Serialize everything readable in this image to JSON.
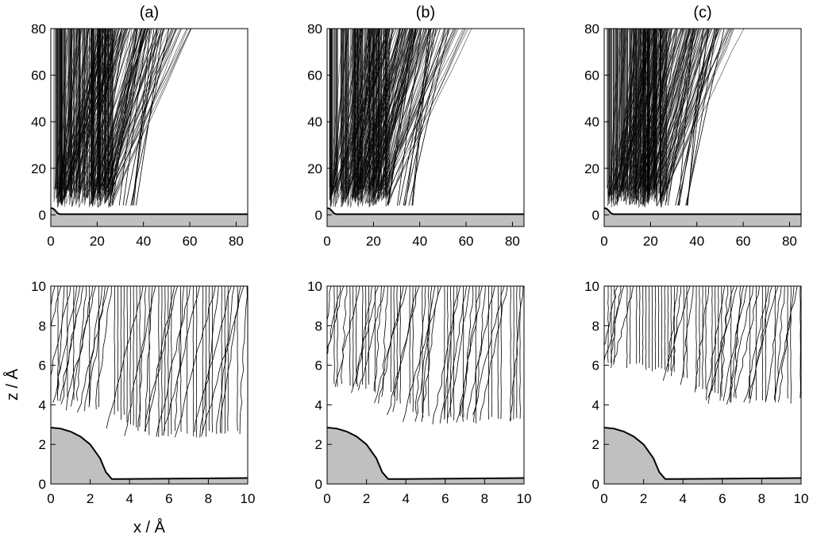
{
  "figure": {
    "xlabel": "x / Å",
    "ylabel": "z / Å",
    "colors": {
      "surface_fill": "#c0c0c0",
      "line": "#000000",
      "frame": "#000000",
      "background": "#ffffff"
    }
  },
  "chart_data": [
    {
      "panel": "(a)",
      "row": "top",
      "type": "line",
      "title": "(a)",
      "xlabel": "",
      "ylabel": "",
      "xlim": [
        0,
        85
      ],
      "ylim": [
        -5,
        80
      ],
      "xticks": [
        "0",
        "20",
        "40",
        "60",
        "80"
      ],
      "yticks": [
        "0",
        "20",
        "40",
        "60",
        "80"
      ],
      "surface": {
        "x": [
          0,
          1,
          2,
          3,
          4,
          85
        ],
        "y": [
          2.9,
          2.7,
          1.8,
          0.6,
          0.3,
          0.3
        ]
      },
      "trajectory_count_note": "",
      "grid": false
    },
    {
      "panel": "(b)",
      "row": "top",
      "type": "line",
      "title": "(b)",
      "xlabel": "",
      "ylabel": "",
      "xlim": [
        0,
        85
      ],
      "ylim": [
        -5,
        80
      ],
      "xticks": [
        "0",
        "20",
        "40",
        "60",
        "80"
      ],
      "yticks": [
        "0",
        "20",
        "40",
        "60",
        "80"
      ],
      "surface": {
        "x": [
          0,
          1,
          2,
          3,
          4,
          85
        ],
        "y": [
          2.9,
          2.7,
          1.8,
          0.6,
          0.3,
          0.3
        ]
      },
      "grid": false
    },
    {
      "panel": "(c)",
      "row": "top",
      "type": "line",
      "title": "(c)",
      "xlabel": "",
      "ylabel": "",
      "xlim": [
        0,
        85
      ],
      "ylim": [
        -5,
        80
      ],
      "xticks": [
        "0",
        "20",
        "40",
        "60",
        "80"
      ],
      "yticks": [
        "0",
        "20",
        "40",
        "60",
        "80"
      ],
      "surface": {
        "x": [
          0,
          1,
          2,
          3,
          4,
          85
        ],
        "y": [
          2.9,
          2.7,
          1.8,
          0.6,
          0.3,
          0.3
        ]
      },
      "grid": false
    },
    {
      "panel": "(a)",
      "row": "bottom",
      "type": "line",
      "title": "",
      "xlabel": "x / Å",
      "ylabel": "z / Å",
      "xlim": [
        0,
        10
      ],
      "ylim": [
        0,
        10
      ],
      "xticks": [
        "0",
        "2",
        "4",
        "6",
        "8",
        "10"
      ],
      "yticks": [
        "0",
        "2",
        "4",
        "6",
        "8",
        "10"
      ],
      "surface": {
        "x": [
          0,
          0.5,
          1,
          1.5,
          2,
          2.5,
          2.8,
          3.1,
          3.5,
          10
        ],
        "y": [
          2.85,
          2.8,
          2.65,
          2.4,
          2.0,
          1.3,
          0.6,
          0.25,
          0.25,
          0.3
        ]
      },
      "turning_depth": {
        "x": [
          0,
          1,
          2,
          3,
          4,
          5,
          6,
          7,
          8,
          9,
          10
        ],
        "z": [
          4.3,
          4.2,
          4.0,
          3.7,
          3.2,
          2.5,
          2.5,
          2.5,
          2.5,
          2.5,
          2.5
        ]
      },
      "grid": false
    },
    {
      "panel": "(b)",
      "row": "bottom",
      "type": "line",
      "title": "",
      "xlabel": "",
      "ylabel": "",
      "xlim": [
        0,
        10
      ],
      "ylim": [
        0,
        10
      ],
      "xticks": [
        "0",
        "2",
        "4",
        "6",
        "8",
        "10"
      ],
      "yticks": [
        "0",
        "2",
        "4",
        "6",
        "8",
        "10"
      ],
      "surface": {
        "x": [
          0,
          0.5,
          1,
          1.5,
          2,
          2.5,
          2.8,
          3.1,
          3.5,
          10
        ],
        "y": [
          2.85,
          2.8,
          2.65,
          2.4,
          2.0,
          1.3,
          0.6,
          0.25,
          0.25,
          0.3
        ]
      },
      "turning_depth": {
        "x": [
          0,
          1,
          2,
          3,
          4,
          5,
          6,
          7,
          8,
          9,
          10
        ],
        "z": [
          5.1,
          5.1,
          4.9,
          4.6,
          4.0,
          3.4,
          3.2,
          3.2,
          3.3,
          3.3,
          3.3
        ]
      },
      "grid": false
    },
    {
      "panel": "(c)",
      "row": "bottom",
      "type": "line",
      "title": "",
      "xlabel": "",
      "ylabel": "",
      "xlim": [
        0,
        10
      ],
      "ylim": [
        0,
        10
      ],
      "xticks": [
        "0",
        "2",
        "4",
        "6",
        "8",
        "10"
      ],
      "yticks": [
        "0",
        "2",
        "4",
        "6",
        "8",
        "10"
      ],
      "surface": {
        "x": [
          0,
          0.5,
          1,
          1.5,
          2,
          2.5,
          2.8,
          3.1,
          3.5,
          10
        ],
        "y": [
          2.85,
          2.8,
          2.65,
          2.4,
          2.0,
          1.3,
          0.6,
          0.25,
          0.25,
          0.3
        ]
      },
      "turning_depth": {
        "x": [
          0,
          1,
          2,
          3,
          4,
          5,
          6,
          7,
          8,
          9,
          10
        ],
        "z": [
          6.0,
          6.0,
          5.9,
          5.7,
          5.4,
          4.8,
          4.4,
          4.2,
          4.2,
          4.2,
          4.2
        ]
      },
      "grid": false
    }
  ]
}
